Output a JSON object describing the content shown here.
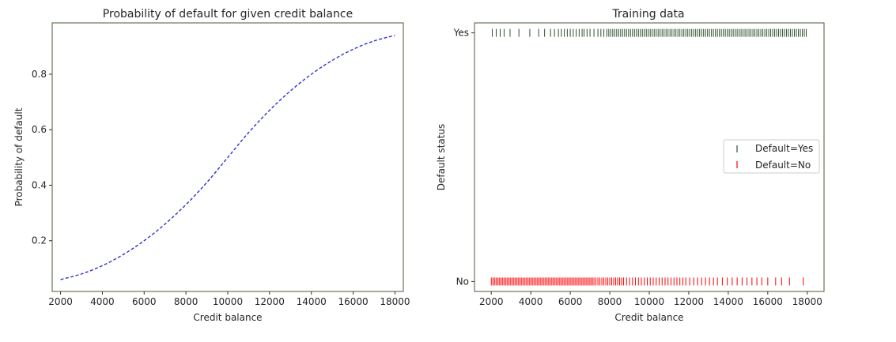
{
  "chart_data": [
    {
      "type": "line",
      "title": "Probability of default for given credit balance",
      "xlabel": "Credit balance",
      "ylabel": "Probability of default",
      "xlim": [
        1600,
        18400
      ],
      "ylim": [
        0.017,
        0.985
      ],
      "xticks": [
        2000,
        4000,
        6000,
        8000,
        10000,
        12000,
        14000,
        16000,
        18000
      ],
      "yticks": [
        0.2,
        0.4,
        0.6,
        0.8
      ],
      "grid": false,
      "series": [
        {
          "line_style": "dashed",
          "color": "#3333cc",
          "x": [
            2000,
            3000,
            4000,
            5000,
            6000,
            7000,
            8000,
            9000,
            10000,
            11000,
            12000,
            13000,
            14000,
            15000,
            16000,
            17000,
            18000
          ],
          "y": [
            0.06,
            0.08,
            0.11,
            0.15,
            0.2,
            0.26,
            0.33,
            0.41,
            0.5,
            0.59,
            0.67,
            0.74,
            0.8,
            0.85,
            0.89,
            0.92,
            0.94
          ]
        }
      ]
    },
    {
      "type": "scatter",
      "title": "Training data",
      "xlabel": "Credit balance",
      "ylabel": "Default status",
      "xlim": [
        1150,
        18850
      ],
      "ylim": [
        -0.04,
        1.04
      ],
      "xticks": [
        2000,
        4000,
        6000,
        8000,
        10000,
        12000,
        14000,
        16000,
        18000
      ],
      "yticks": [
        0,
        1
      ],
      "ytick_labels": [
        "No",
        "Yes"
      ],
      "marker": "|",
      "grid": false,
      "legend_position": "center-right",
      "series": [
        {
          "name": "Default=Yes",
          "color": "#2f4f2f",
          "y_value": 1,
          "x": [
            2050,
            2250,
            2450,
            2650,
            2950,
            3400,
            3950,
            4400,
            4700,
            5000,
            5200,
            5400,
            5550,
            5700,
            5850,
            6000,
            6150,
            6300,
            6450,
            6600,
            6700,
            6850,
            7000,
            7200,
            7400,
            7550,
            7700,
            7850,
            7950,
            8050,
            8150,
            8250,
            8350,
            8450,
            8550,
            8650,
            8750,
            8850,
            8950,
            9050,
            9150,
            9250,
            9350,
            9450,
            9550,
            9650,
            9750,
            9850,
            9950,
            10050,
            10150,
            10250,
            10350,
            10450,
            10550,
            10650,
            10750,
            10850,
            10950,
            11050,
            11150,
            11250,
            11350,
            11450,
            11550,
            11650,
            11750,
            11850,
            11950,
            12050,
            12150,
            12250,
            12350,
            12450,
            12550,
            12650,
            12750,
            12850,
            12950,
            13050,
            13150,
            13250,
            13350,
            13450,
            13550,
            13650,
            13750,
            13850,
            13950,
            14050,
            14150,
            14250,
            14350,
            14450,
            14550,
            14650,
            14750,
            14850,
            14950,
            15050,
            15150,
            15250,
            15350,
            15450,
            15550,
            15650,
            15750,
            15850,
            15950,
            16050,
            16150,
            16250,
            16350,
            16450,
            16550,
            16650,
            16750,
            16850,
            16950,
            17050,
            17150,
            17250,
            17350,
            17450,
            17550,
            17650,
            17750,
            17850,
            17950
          ]
        },
        {
          "name": "Default=No",
          "color": "#ff0000",
          "y_value": 0,
          "x": [
            2000,
            2080,
            2160,
            2240,
            2320,
            2400,
            2480,
            2560,
            2640,
            2720,
            2800,
            2880,
            2960,
            3040,
            3120,
            3200,
            3280,
            3360,
            3440,
            3520,
            3600,
            3680,
            3760,
            3840,
            3920,
            4000,
            4080,
            4160,
            4240,
            4320,
            4400,
            4480,
            4560,
            4640,
            4720,
            4800,
            4880,
            4960,
            5040,
            5120,
            5200,
            5280,
            5360,
            5440,
            5520,
            5600,
            5680,
            5760,
            5840,
            5920,
            6000,
            6080,
            6160,
            6240,
            6320,
            6400,
            6480,
            6560,
            6640,
            6720,
            6800,
            6880,
            6960,
            7040,
            7120,
            7200,
            7300,
            7400,
            7500,
            7600,
            7700,
            7800,
            7900,
            8000,
            8100,
            8200,
            8300,
            8400,
            8500,
            8600,
            8700,
            8850,
            9000,
            9150,
            9300,
            9450,
            9600,
            9750,
            9900,
            10050,
            10200,
            10350,
            10500,
            10650,
            10800,
            10950,
            11100,
            11250,
            11400,
            11550,
            11700,
            11850,
            12050,
            12250,
            12450,
            12650,
            12850,
            13050,
            13250,
            13450,
            13700,
            13950,
            14200,
            14450,
            14700,
            14950,
            15200,
            15450,
            15700,
            16000,
            16400,
            16700,
            17100,
            17800
          ]
        }
      ]
    }
  ]
}
